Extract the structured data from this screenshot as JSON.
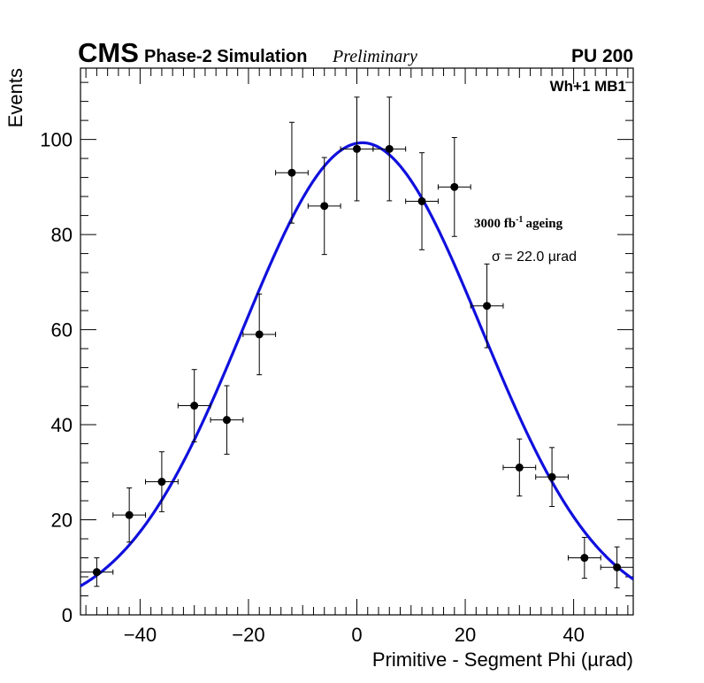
{
  "chart_data": {
    "type": "scatter",
    "title": {
      "experiment": "CMS",
      "phase": "Phase-2 Simulation",
      "status": "Preliminary",
      "pileup": "PU 200"
    },
    "region_label": "Wh+1 MB1",
    "ageing_label": {
      "value": "3000",
      "unit": "fb",
      "exponent": "-1",
      "suffix": "ageing"
    },
    "fit_label": "σ = 22.0 µrad",
    "xlabel": "Primitive - Segment Phi (µrad)",
    "ylabel": "Events",
    "xlim": [
      -51,
      51
    ],
    "ylim": [
      0,
      115
    ],
    "xticks": [
      -40,
      -20,
      0,
      20,
      40
    ],
    "xtick_labels": [
      "−40",
      "−20",
      "0",
      "20",
      "40"
    ],
    "yticks": [
      0,
      20,
      40,
      60,
      80,
      100
    ],
    "ytick_labels": [
      "0",
      "20",
      "40",
      "60",
      "80",
      "100"
    ],
    "grid": false,
    "series": [
      {
        "name": "Events",
        "color": "#000000",
        "bin_half_width": 3,
        "points": [
          {
            "x": -48,
            "y": 9,
            "err": 3.0
          },
          {
            "x": -42,
            "y": 21,
            "err": 5.7
          },
          {
            "x": -36,
            "y": 28,
            "err": 6.3
          },
          {
            "x": -30,
            "y": 44,
            "err": 7.6
          },
          {
            "x": -24,
            "y": 41,
            "err": 7.2
          },
          {
            "x": -18,
            "y": 59,
            "err": 8.5
          },
          {
            "x": -12,
            "y": 93,
            "err": 10.6
          },
          {
            "x": -6,
            "y": 86,
            "err": 10.2
          },
          {
            "x": 0,
            "y": 98,
            "err": 10.9
          },
          {
            "x": 6,
            "y": 98,
            "err": 10.9
          },
          {
            "x": 12,
            "y": 87,
            "err": 10.2
          },
          {
            "x": 18,
            "y": 90,
            "err": 10.4
          },
          {
            "x": 24,
            "y": 65,
            "err": 8.8
          },
          {
            "x": 30,
            "y": 31,
            "err": 6.0
          },
          {
            "x": 36,
            "y": 29,
            "err": 6.2
          },
          {
            "x": 42,
            "y": 12,
            "err": 4.3
          },
          {
            "x": 48,
            "y": 10,
            "err": 4.3
          }
        ]
      },
      {
        "name": "Gaussian fit",
        "type": "line",
        "color": "#1010dd",
        "function": "gaussian",
        "amplitude": 99.3,
        "mean": 1.0,
        "sigma": 22.0
      }
    ]
  }
}
